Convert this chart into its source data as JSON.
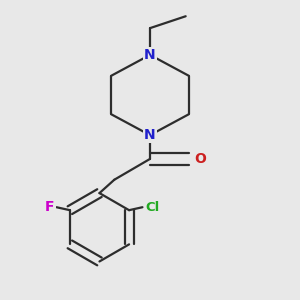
{
  "background_color": "#e8e8e8",
  "bond_color": "#2d2d2d",
  "bond_width": 1.6,
  "atom_colors": {
    "N": "#2020cc",
    "O": "#cc2020",
    "Cl": "#22aa22",
    "F": "#cc00cc",
    "C": "#2d2d2d"
  },
  "font_size_atom": 10,
  "figsize": [
    3.0,
    3.0
  ],
  "dpi": 100,
  "xlim": [
    0.0,
    1.0
  ],
  "ylim": [
    0.0,
    1.0
  ]
}
